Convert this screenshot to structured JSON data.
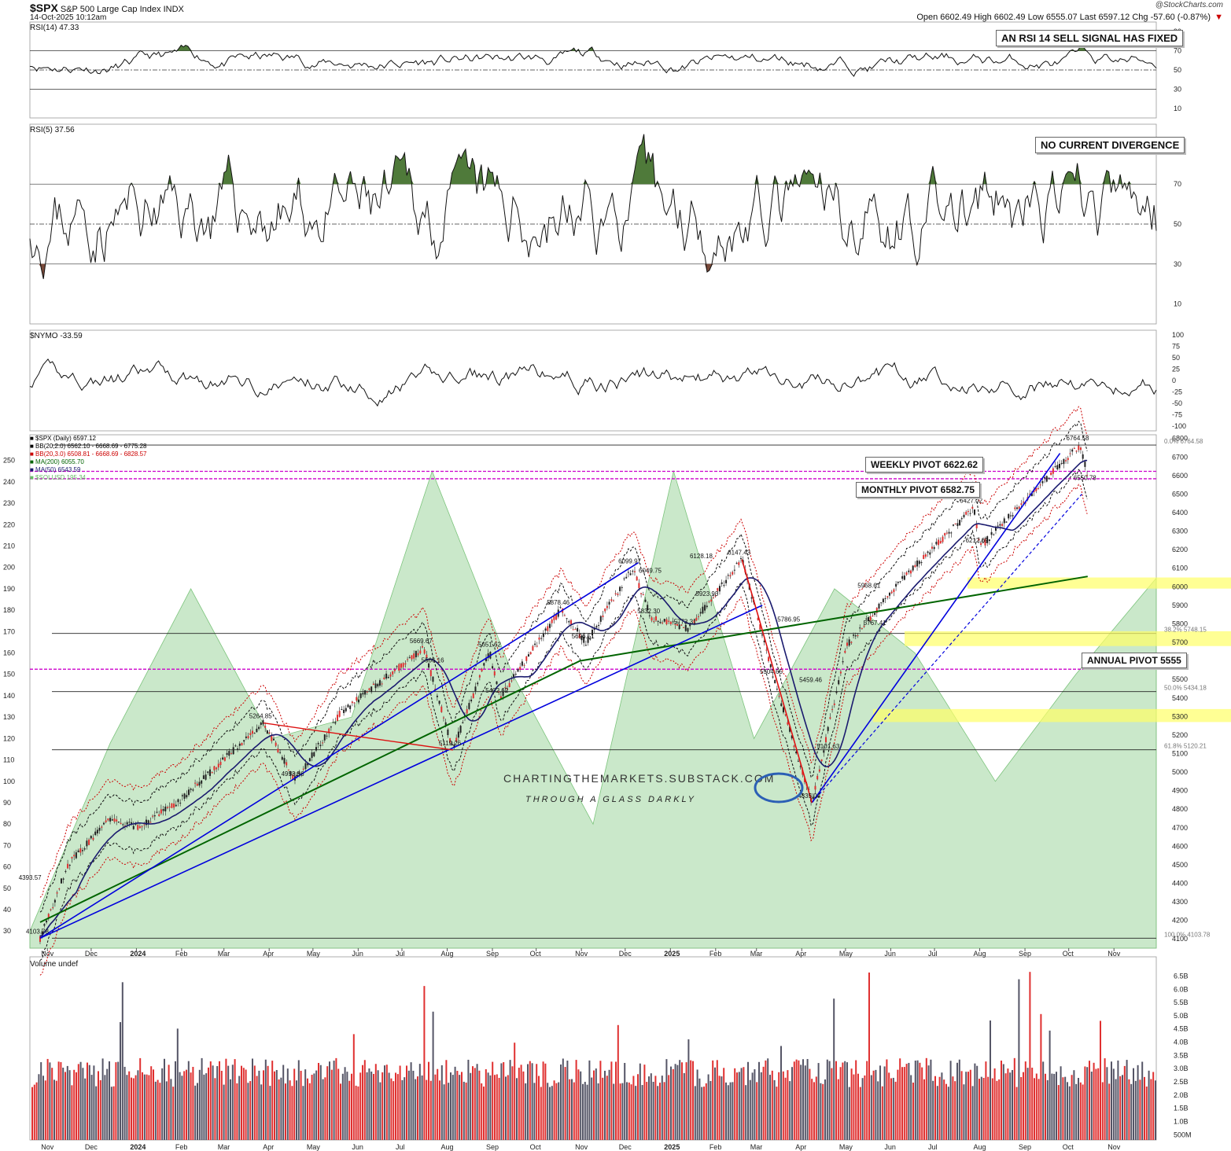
{
  "header": {
    "symbol": "$SPX",
    "name": "S&P 500 Large Cap Index",
    "exchange": "INDX",
    "timestamp": "14-Oct-2025 10:12am",
    "watermark": "@StockCharts.com",
    "ohlc": "Open 6602.49  High 6602.49  Low 6555.07  Last 6597.12  Chg -57.60 (-0.87%)",
    "direction_icon": "down-triangle"
  },
  "annotations": {
    "rsi14_note": "AN RSI 14 SELL SIGNAL HAS FIXED",
    "rsi5_note": "NO CURRENT DIVERGENCE",
    "weekly_pivot": "WEEKLY PIVOT 6622.62",
    "monthly_pivot": "MONTHLY PIVOT 6582.75",
    "annual_pivot": "ANNUAL PIVOT 5555",
    "brand": "CHARTINGTHEMARKETS.SUBSTACK.COM",
    "tagline": "THROUGH A GLASS DARKLY"
  },
  "panels": {
    "rsi14": {
      "label": "RSI(14) 47.33",
      "ticks": [
        "90",
        "70",
        "50",
        "30",
        "10"
      ]
    },
    "rsi5": {
      "label": "RSI(5) 37.56",
      "ticks": [
        "90",
        "70",
        "50",
        "30",
        "10"
      ]
    },
    "nymo": {
      "label": "$NYMO -33.59",
      "ticks": [
        "100",
        "75",
        "50",
        "25",
        "0",
        "-25",
        "-50",
        "-75",
        "-100"
      ]
    },
    "price": {
      "legend": [
        {
          "text": "$SPX (Daily) 6597.12",
          "color": "#000000"
        },
        {
          "text": "BB(20,2.0) 6562.10 - 6668.69 - 6775.28",
          "color": "#000000"
        },
        {
          "text": "BB(20,3.0) 6508.81 - 6668.69 - 6828.57",
          "color": "#cc0000"
        },
        {
          "text": "MA(200) 6055.70",
          "color": "#006400"
        },
        {
          "text": "MA(50) 6543.59",
          "color": "#1a1a6e"
        },
        {
          "text": "$SOLUSD 195.34",
          "color": "#66bb66"
        }
      ],
      "right_ticks": [
        "6800",
        "6700",
        "6600",
        "6500",
        "6400",
        "6300",
        "6200",
        "6100",
        "6000",
        "5900",
        "5800",
        "5700",
        "5600",
        "5500",
        "5400",
        "5300",
        "5200",
        "5100",
        "5000",
        "4900",
        "4800",
        "4700",
        "4600",
        "4500",
        "4400",
        "4300",
        "4200",
        "4100"
      ],
      "left_ticks": [
        "250",
        "240",
        "230",
        "220",
        "210",
        "200",
        "190",
        "180",
        "170",
        "160",
        "150",
        "140",
        "130",
        "120",
        "110",
        "100",
        "90",
        "80",
        "70",
        "60",
        "50",
        "40",
        "30"
      ],
      "fib_labels": [
        "0.0% 6764.58",
        "38.2% 5748.15",
        "50.0% 5434.18",
        "61.8% 5120.21",
        "100.0% 4103.78"
      ],
      "point_labels": [
        "4393.57",
        "4103.78",
        "5264.85",
        "4953.56",
        "5669.67",
        "5566.16",
        "5119.26",
        "5402.62",
        "5651.62",
        "5878.46",
        "5696.51",
        "6099.97",
        "6049.75",
        "5832.30",
        "6128.18",
        "6147.43",
        "5923.93",
        "5773.31",
        "5786.95",
        "5504.65",
        "5459.46",
        "5101.63",
        "4835.04",
        "5968.61",
        "5767.41",
        "6427.02",
        "6212.69",
        "6764.58",
        "6550.78"
      ]
    },
    "volume": {
      "label": "Volume undef",
      "ticks": [
        "6.5B",
        "6.0B",
        "5.5B",
        "5.0B",
        "4.5B",
        "4.0B",
        "3.5B",
        "3.0B",
        "2.5B",
        "2.0B",
        "1.5B",
        "1.0B",
        "500M"
      ]
    }
  },
  "x_axis": [
    "Nov",
    "Dec",
    "2024",
    "Feb",
    "Mar",
    "Apr",
    "May",
    "Jun",
    "Jul",
    "Aug",
    "Sep",
    "Oct",
    "Nov",
    "Dec",
    "2025",
    "Feb",
    "Mar",
    "Apr",
    "May",
    "Jun",
    "Jul",
    "Aug",
    "Sep",
    "Oct",
    "Nov"
  ],
  "colors": {
    "up": "#e03030",
    "down": "#555566",
    "ma200": "#006400",
    "ma50": "#1a1a6e",
    "sol": "#9fd59f",
    "pivot": "#cc00cc",
    "trend": "#0000dd"
  },
  "chart_data": {
    "type": "line",
    "title": "$SPX S&P 500 Large Cap Index",
    "ylim": [
      4050,
      6820
    ],
    "series": [
      {
        "name": "$SPX (Daily)",
        "x": [
          "2023-10-27",
          "2023-11-15",
          "2023-12-14",
          "2024-01-02",
          "2024-01-31",
          "2024-03-28",
          "2024-04-19",
          "2024-05-20",
          "2024-07-16",
          "2024-08-05",
          "2024-08-30",
          "2024-09-06",
          "2024-10-18",
          "2024-11-04",
          "2024-12-06",
          "2024-12-19",
          "2025-01-13",
          "2025-02-19",
          "2025-03-13",
          "2025-04-08",
          "2025-05-02",
          "2025-06-11",
          "2025-07-28",
          "2025-08-01",
          "2025-09-30",
          "2025-10-09",
          "2025-10-14"
        ],
        "values": [
          4103.78,
          4500,
          4750,
          4700,
          4850,
          5264.85,
          4953.56,
          5320,
          5669.67,
          5119.26,
          5650,
          5402.62,
          5878.46,
          5696.51,
          6099.97,
          5832.3,
          5773.31,
          6147.43,
          5504.65,
          4835.04,
          5686,
          6058,
          6427.02,
          6212.69,
          6700,
          6764.58,
          6597.12
        ]
      },
      {
        "name": "MA(200)",
        "x": [
          "2023-10-27",
          "2024-10-31",
          "2025-10-14"
        ],
        "values": [
          4190,
          5600,
          6055.7
        ]
      },
      {
        "name": "$SOLUSD",
        "values": [
          30,
          118,
          190,
          120,
          130,
          245,
          150,
          80,
          245,
          120,
          190,
          160,
          100,
          150,
          195
        ]
      }
    ],
    "pivots": {
      "weekly": 6622.62,
      "monthly": 6582.75,
      "annual": 5555
    },
    "fibonacci": {
      "0.0%": 6764.58,
      "38.2%": 5748.15,
      "50.0%": 5434.18,
      "61.8%": 5120.21,
      "100.0%": 4103.78
    }
  }
}
